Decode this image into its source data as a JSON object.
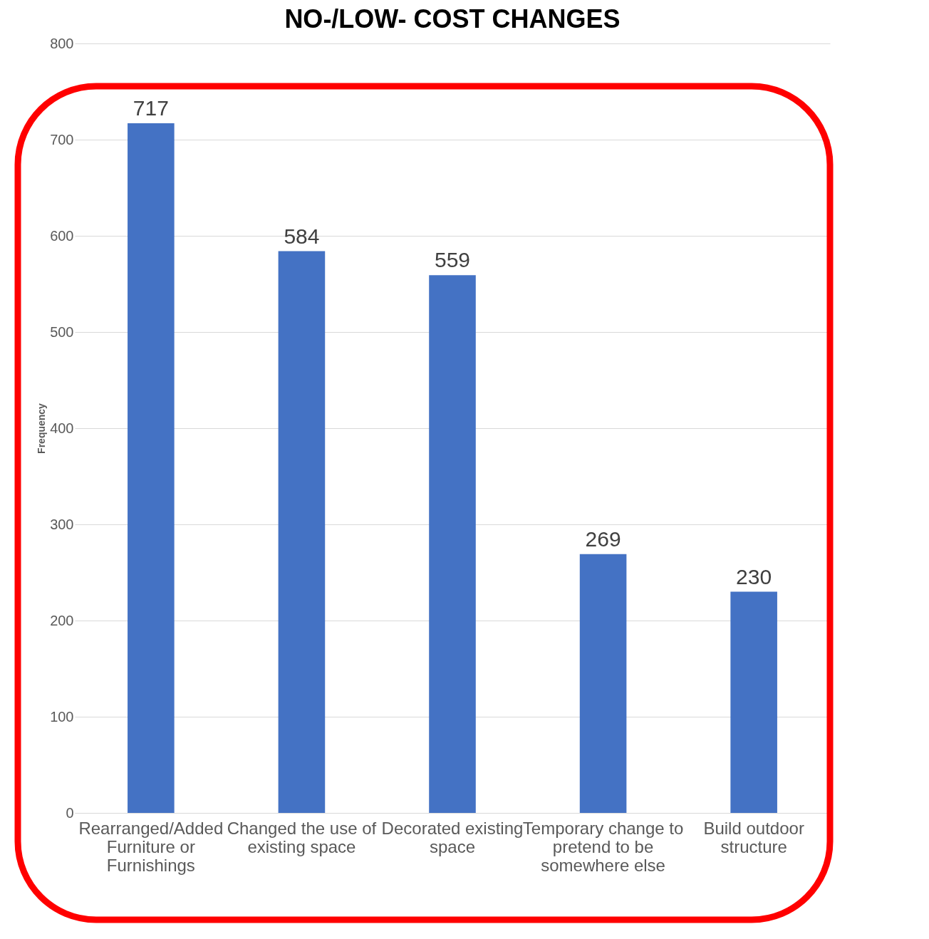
{
  "chart_data": {
    "type": "bar",
    "title": "NO-/LOW- COST CHANGES",
    "ylabel": "Frequency",
    "categories": [
      "Rearranged/Added Furniture or Furnishings",
      "Changed the use of existing space",
      "Decorated existing space",
      "Temporary change to pretend to be somewhere else",
      "Build outdoor structure"
    ],
    "values": [
      717,
      584,
      559,
      269,
      230
    ],
    "color": "#4472c4",
    "ylim": [
      0,
      800
    ],
    "yticks": [
      0,
      100,
      200,
      300,
      400,
      500,
      600,
      700,
      800
    ],
    "grid": "y",
    "data_labels": true
  }
}
